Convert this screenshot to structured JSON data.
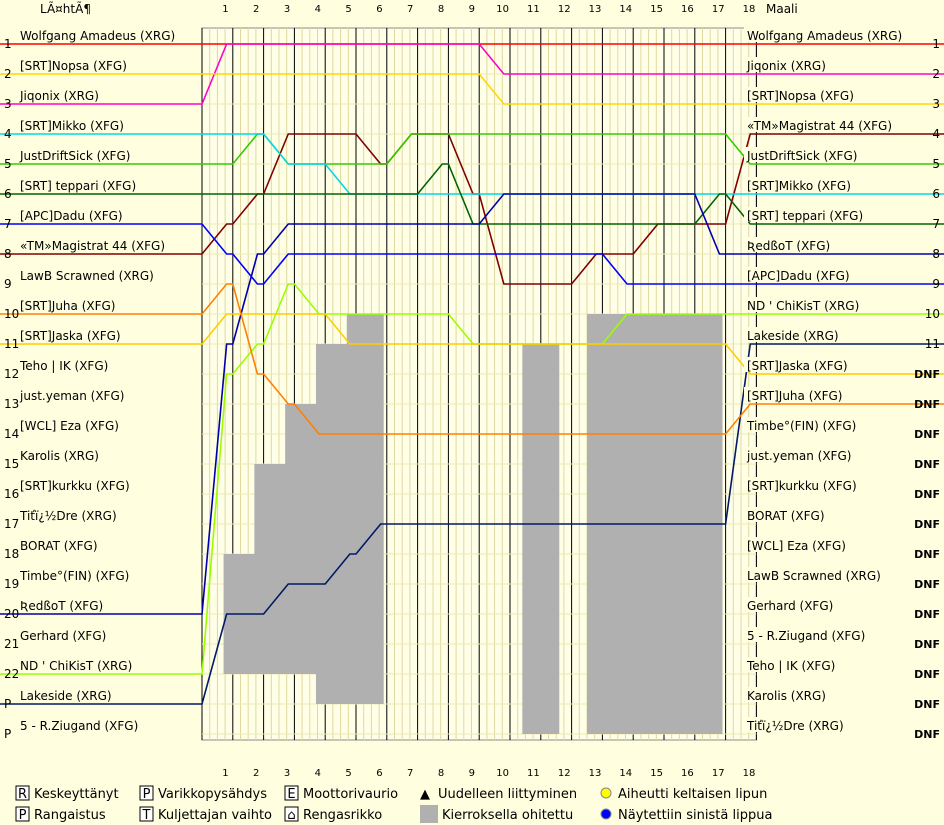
{
  "header": {
    "start_label": "LÃ¤htÃ¶",
    "finish_label": "Maali"
  },
  "chart_data": {
    "type": "line",
    "laps": [
      1,
      2,
      3,
      4,
      5,
      6,
      7,
      8,
      9,
      10,
      11,
      12,
      13,
      14,
      15,
      16,
      17,
      18
    ],
    "start_positions": [
      "1",
      "2",
      "3",
      "4",
      "5",
      "6",
      "7",
      "8",
      "9",
      "10",
      "11",
      "12",
      "13",
      "14",
      "15",
      "16",
      "17",
      "18",
      "19",
      "20",
      "21",
      "22",
      "P",
      "P"
    ],
    "finish_positions": [
      "1",
      "2",
      "3",
      "4",
      "5",
      "6",
      "7",
      "8",
      "9",
      "10",
      "11",
      "DNF",
      "DNF",
      "DNF",
      "DNF",
      "DNF",
      "DNF",
      "DNF",
      "DNF",
      "DNF",
      "DNF",
      "DNF",
      "DNF",
      "DNF"
    ],
    "start_order": [
      "Wolfgang Amadeus (XRG)",
      "[SRT]Nopsa (XFG)",
      "Jiqonix (XRG)",
      "[SRT]Mikko (XFG)",
      "JustDriftSick (XFG)",
      "[SRT] teppari (XFG)",
      "[APC]Dadu (XFG)",
      "«TM»Magistrat 44 (XFG)",
      "LawB Scrawned (XRG)",
      "[SRT]Juha (XFG)",
      "[SRT]Jaska (XFG)",
      "Teho | IK (XFG)",
      "just.yeman (XFG)",
      "[WCL] Eza (XFG)",
      "Karolis (XRG)",
      "[SRT]kurkku (XFG)",
      "Tiťï¿½Dre (XRG)",
      "BORAT (XFG)",
      "Timbe°(FIN) (XFG)",
      "ƦedßoT (XFG)",
      "Gerhard (XFG)",
      "ND ' ChiKisT (XRG)",
      "Lakeside (XRG)",
      "5 - R.Ziugand (XFG)"
    ],
    "finish_order": [
      "Wolfgang Amadeus (XRG)",
      "Jiqonix (XRG)",
      "[SRT]Nopsa (XFG)",
      "«TM»Magistrat 44 (XFG)",
      "JustDriftSick (XFG)",
      "[SRT]Mikko (XFG)",
      "[SRT] teppari (XFG)",
      "ƦedßoT (XFG)",
      "[APC]Dadu (XFG)",
      "ND ' ChiKisT (XRG)",
      "Lakeside (XRG)",
      "[SRT]Jaska (XFG)",
      "[SRT]Juha (XFG)",
      "Timbe°(FIN) (XFG)",
      "just.yeman (XFG)",
      "[SRT]kurkku (XFG)",
      "BORAT (XFG)",
      "[WCL] Eza (XFG)",
      "LawB Scrawned (XRG)",
      "Gerhard (XFG)",
      "5 - R.Ziugand (XFG)",
      "Teho | IK (XFG)",
      "Karolis (XRG)",
      "Tiťï¿½Dre (XRG)"
    ],
    "series": [
      {
        "name": "Wolfgang Amadeus (XRG)",
        "color": "#ff0000",
        "positions": [
          1,
          1,
          1,
          1,
          1,
          1,
          1,
          1,
          1,
          1,
          1,
          1,
          1,
          1,
          1,
          1,
          1,
          1,
          1
        ]
      },
      {
        "name": "Jiqonix (XRG)",
        "color": "#ff00cc",
        "positions": [
          3,
          1,
          1,
          1,
          1,
          1,
          1,
          1,
          1,
          1,
          2,
          2,
          2,
          2,
          2,
          2,
          2,
          2,
          2
        ]
      },
      {
        "name": "[SRT]Nopsa (XFG)",
        "color": "#ffd700",
        "positions": [
          2,
          2,
          2,
          2,
          2,
          2,
          2,
          2,
          2,
          2,
          3,
          3,
          3,
          3,
          3,
          3,
          3,
          3,
          3
        ]
      },
      {
        "name": "«TM»Magistrat 44 (XFG)",
        "color": "#800000",
        "positions": [
          8,
          7,
          6,
          4,
          4,
          4,
          5,
          4,
          4,
          6,
          9,
          9,
          9,
          8,
          8,
          7,
          7,
          7,
          4
        ]
      },
      {
        "name": "JustDriftSick (XFG)",
        "color": "#33cc00",
        "positions": [
          5,
          5,
          4,
          5,
          5,
          5,
          5,
          4,
          4,
          4,
          4,
          4,
          4,
          4,
          4,
          4,
          4,
          4,
          5
        ]
      },
      {
        "name": "[SRT]Mikko (XFG)",
        "color": "#00d8e8",
        "positions": [
          4,
          4,
          4,
          5,
          5,
          6,
          6,
          6,
          6,
          6,
          6,
          6,
          6,
          6,
          6,
          6,
          6,
          6,
          6
        ]
      },
      {
        "name": "[SRT] teppari (XFG)",
        "color": "#006400",
        "positions": [
          6,
          6,
          6,
          6,
          6,
          6,
          6,
          6,
          5,
          7,
          7,
          7,
          7,
          7,
          7,
          7,
          7,
          6,
          7
        ]
      },
      {
        "name": "ƦedßoT (XFG)",
        "color": "#0000aa",
        "positions": [
          20,
          11,
          8,
          7,
          7,
          7,
          7,
          7,
          7,
          7,
          6,
          6,
          6,
          6,
          6,
          6,
          6,
          8,
          8
        ]
      },
      {
        "name": "[APC]Dadu (XFG)",
        "color": "#0000ff",
        "positions": [
          7,
          8,
          9,
          8,
          8,
          8,
          8,
          8,
          8,
          8,
          8,
          8,
          8,
          8,
          9,
          9,
          9,
          9,
          9
        ]
      },
      {
        "name": "ND ' ChiKisT (XRG)",
        "color": "#99ff00",
        "positions": [
          22,
          12,
          11,
          9,
          10,
          10,
          10,
          10,
          10,
          11,
          11,
          11,
          11,
          11,
          10,
          10,
          10,
          10,
          10
        ]
      },
      {
        "name": "Lakeside (XRG)",
        "color": "#001a66",
        "positions": [
          23,
          20,
          20,
          19,
          19,
          18,
          17,
          17,
          17,
          17,
          17,
          17,
          17,
          17,
          17,
          17,
          17,
          17,
          11
        ]
      },
      {
        "name": "[SRT]Jaska (XFG)",
        "color": "#ffcc00",
        "positions": [
          11,
          10,
          10,
          10,
          10,
          11,
          11,
          11,
          11,
          11,
          11,
          11,
          11,
          11,
          11,
          11,
          11,
          11,
          12
        ]
      },
      {
        "name": "[SRT]Juha (XFG)",
        "color": "#ff8000",
        "positions": [
          10,
          9,
          12,
          13,
          14,
          14,
          14,
          14,
          14,
          14,
          14,
          14,
          14,
          14,
          14,
          14,
          14,
          14,
          13
        ]
      }
    ],
    "legend": [
      {
        "symbol": "R",
        "label": "Keskeyttänyt"
      },
      {
        "symbol": "P",
        "label": "Varikkopysähdys"
      },
      {
        "symbol": "E",
        "label": "Moottorivaurio"
      },
      {
        "symbol": "▲",
        "label": "Uudelleen liittyminen"
      },
      {
        "symbol": "●",
        "label": "Aiheutti keltaisen lipun"
      },
      {
        "symbol": "P",
        "label": "Rangaistus"
      },
      {
        "symbol": "T",
        "label": "Kuljettajan vaihto"
      },
      {
        "symbol": "⌂",
        "label": "Rengasrikko"
      },
      {
        "symbol": "■",
        "label": "Kierroksella ohitettu"
      },
      {
        "symbol": "●",
        "label": "Näytettiin sinistä lippua"
      }
    ],
    "legend_colors": {
      "yellow_flag": "#ffff00",
      "blue_flag": "#0000ff",
      "lapped": "#b0b0b0"
    }
  }
}
